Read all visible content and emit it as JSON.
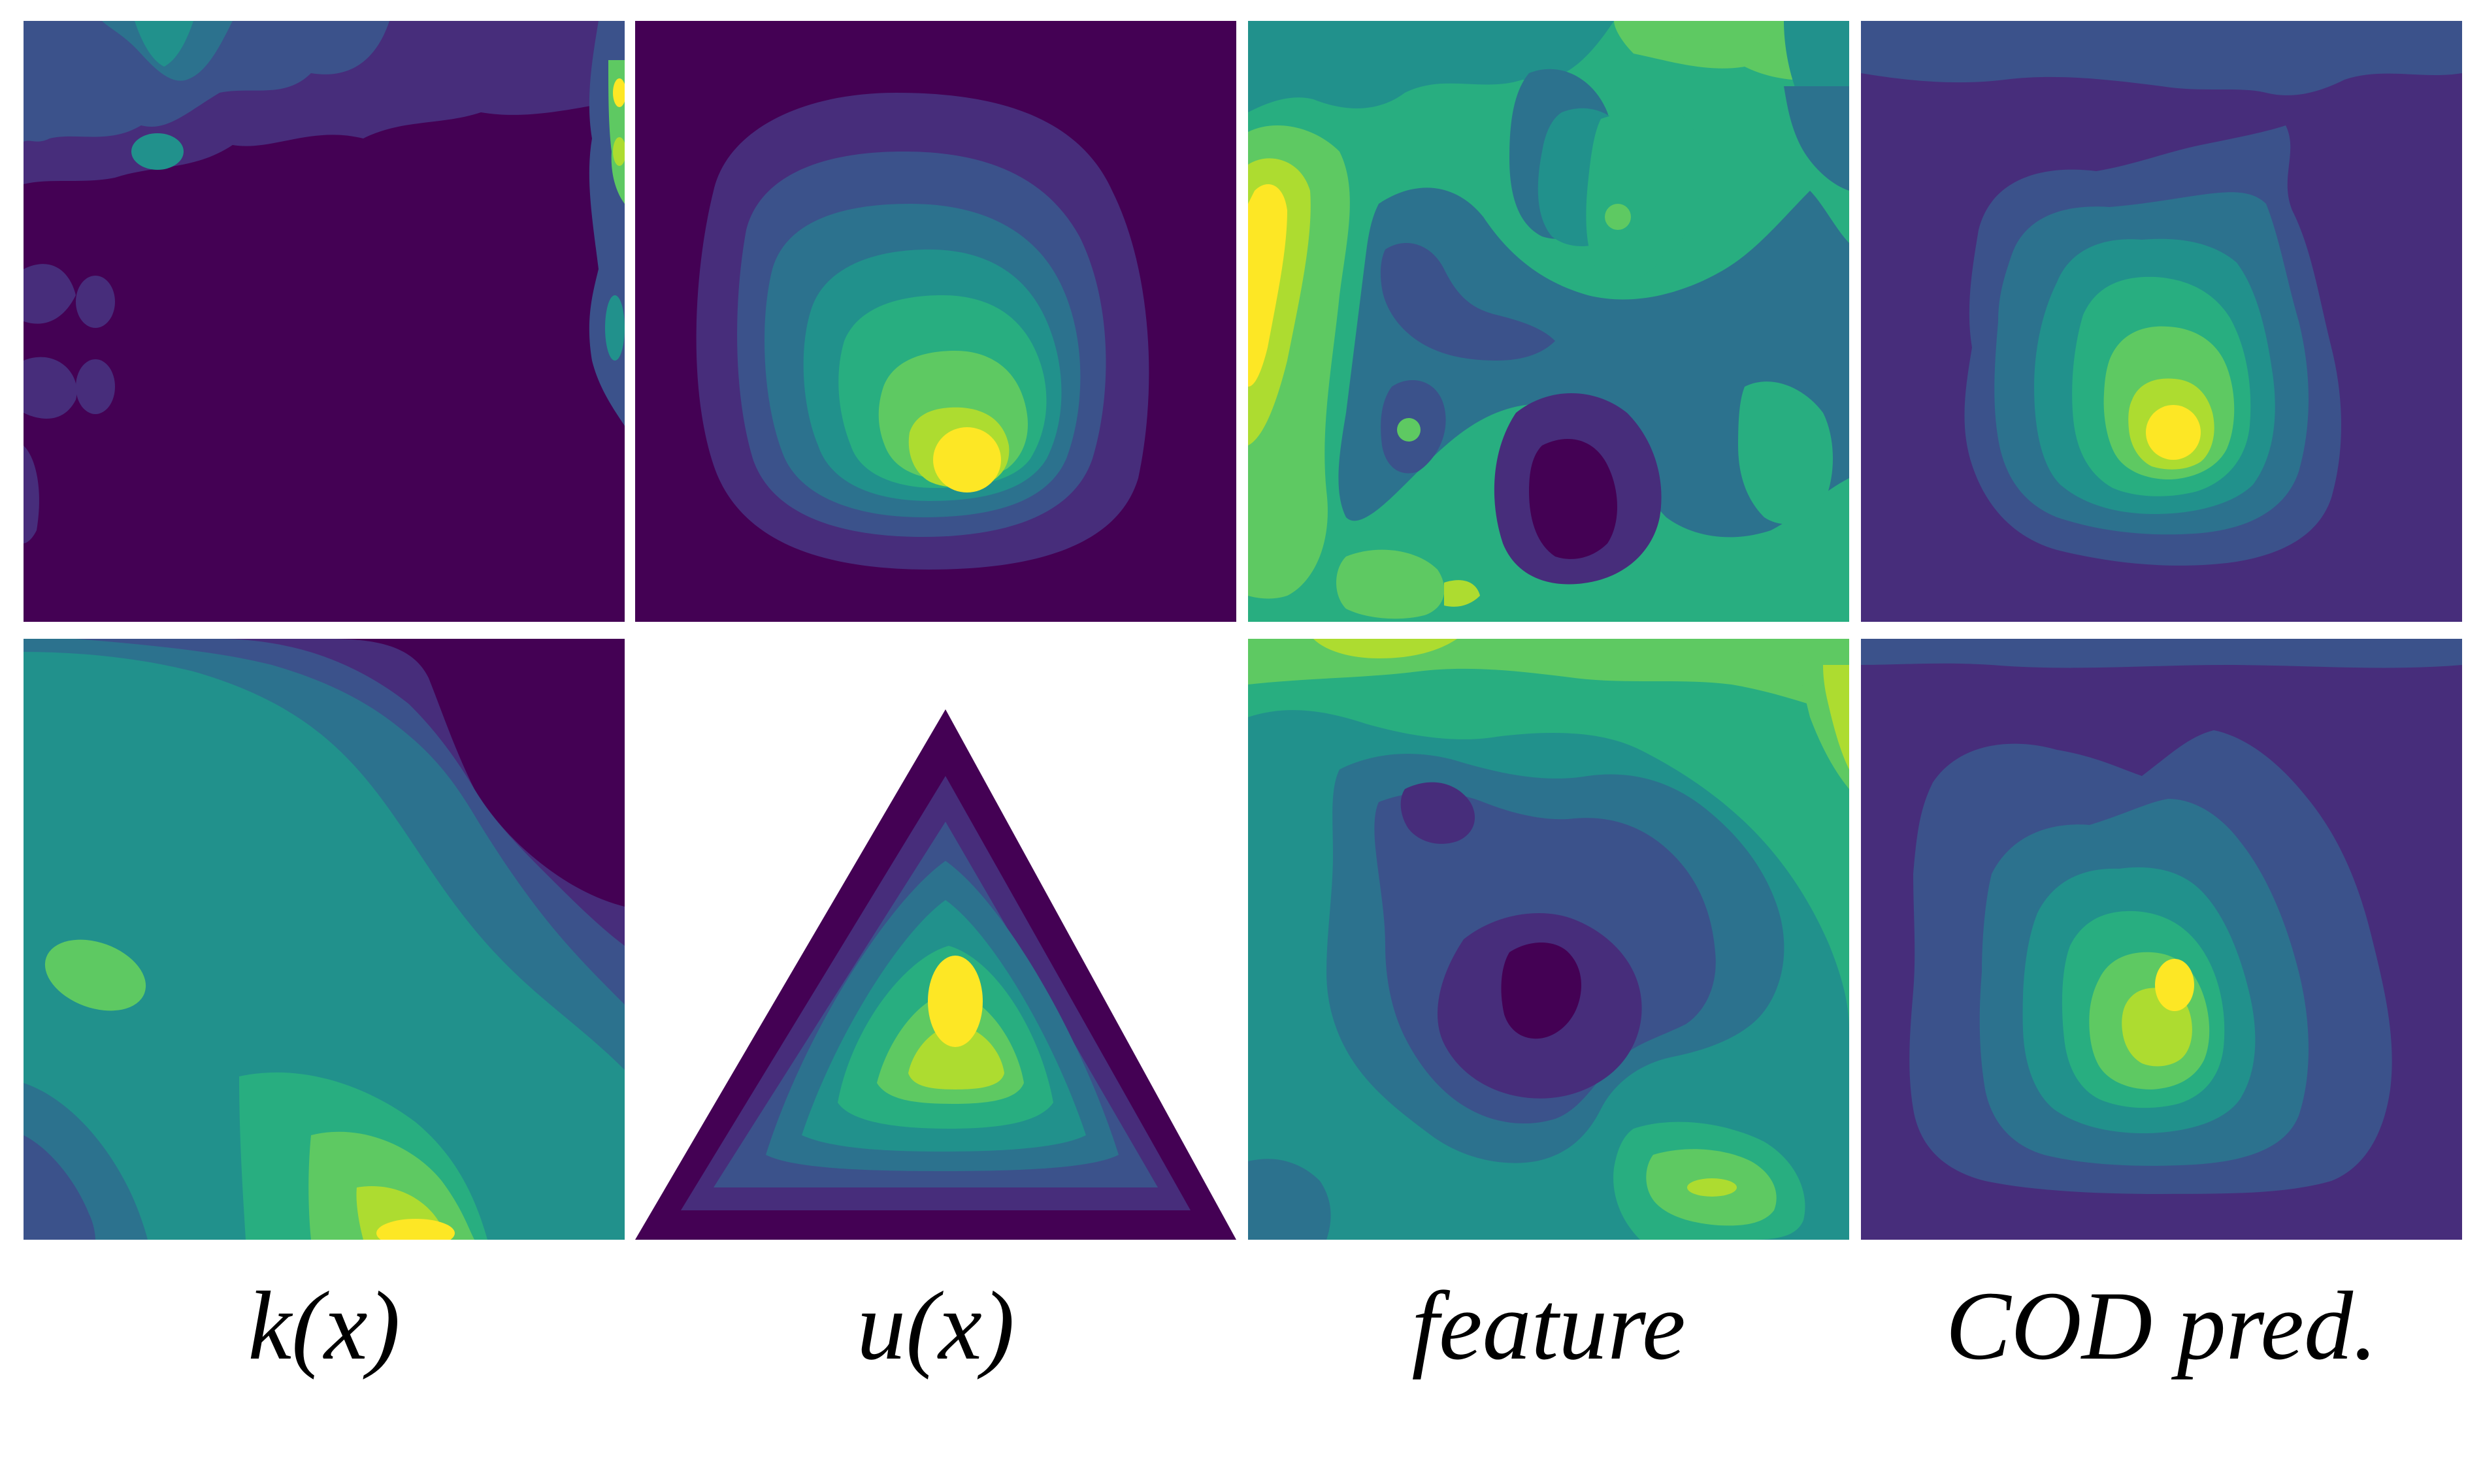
{
  "colormap": [
    "#440154",
    "#472d7b",
    "#3b528b",
    "#2c728e",
    "#21918c",
    "#28ae80",
    "#5ec962",
    "#addc30",
    "#fde725"
  ],
  "columns": [
    {
      "label": "k(x)"
    },
    {
      "label": "u(x)"
    },
    {
      "label": "feature"
    },
    {
      "label": "COD pred."
    }
  ],
  "rows": [
    {
      "panels": [
        "k-field",
        "solution-square",
        "feature-map",
        "prediction"
      ]
    },
    {
      "panels": [
        "k-field",
        "solution-triangle",
        "feature-map",
        "prediction"
      ]
    }
  ]
}
